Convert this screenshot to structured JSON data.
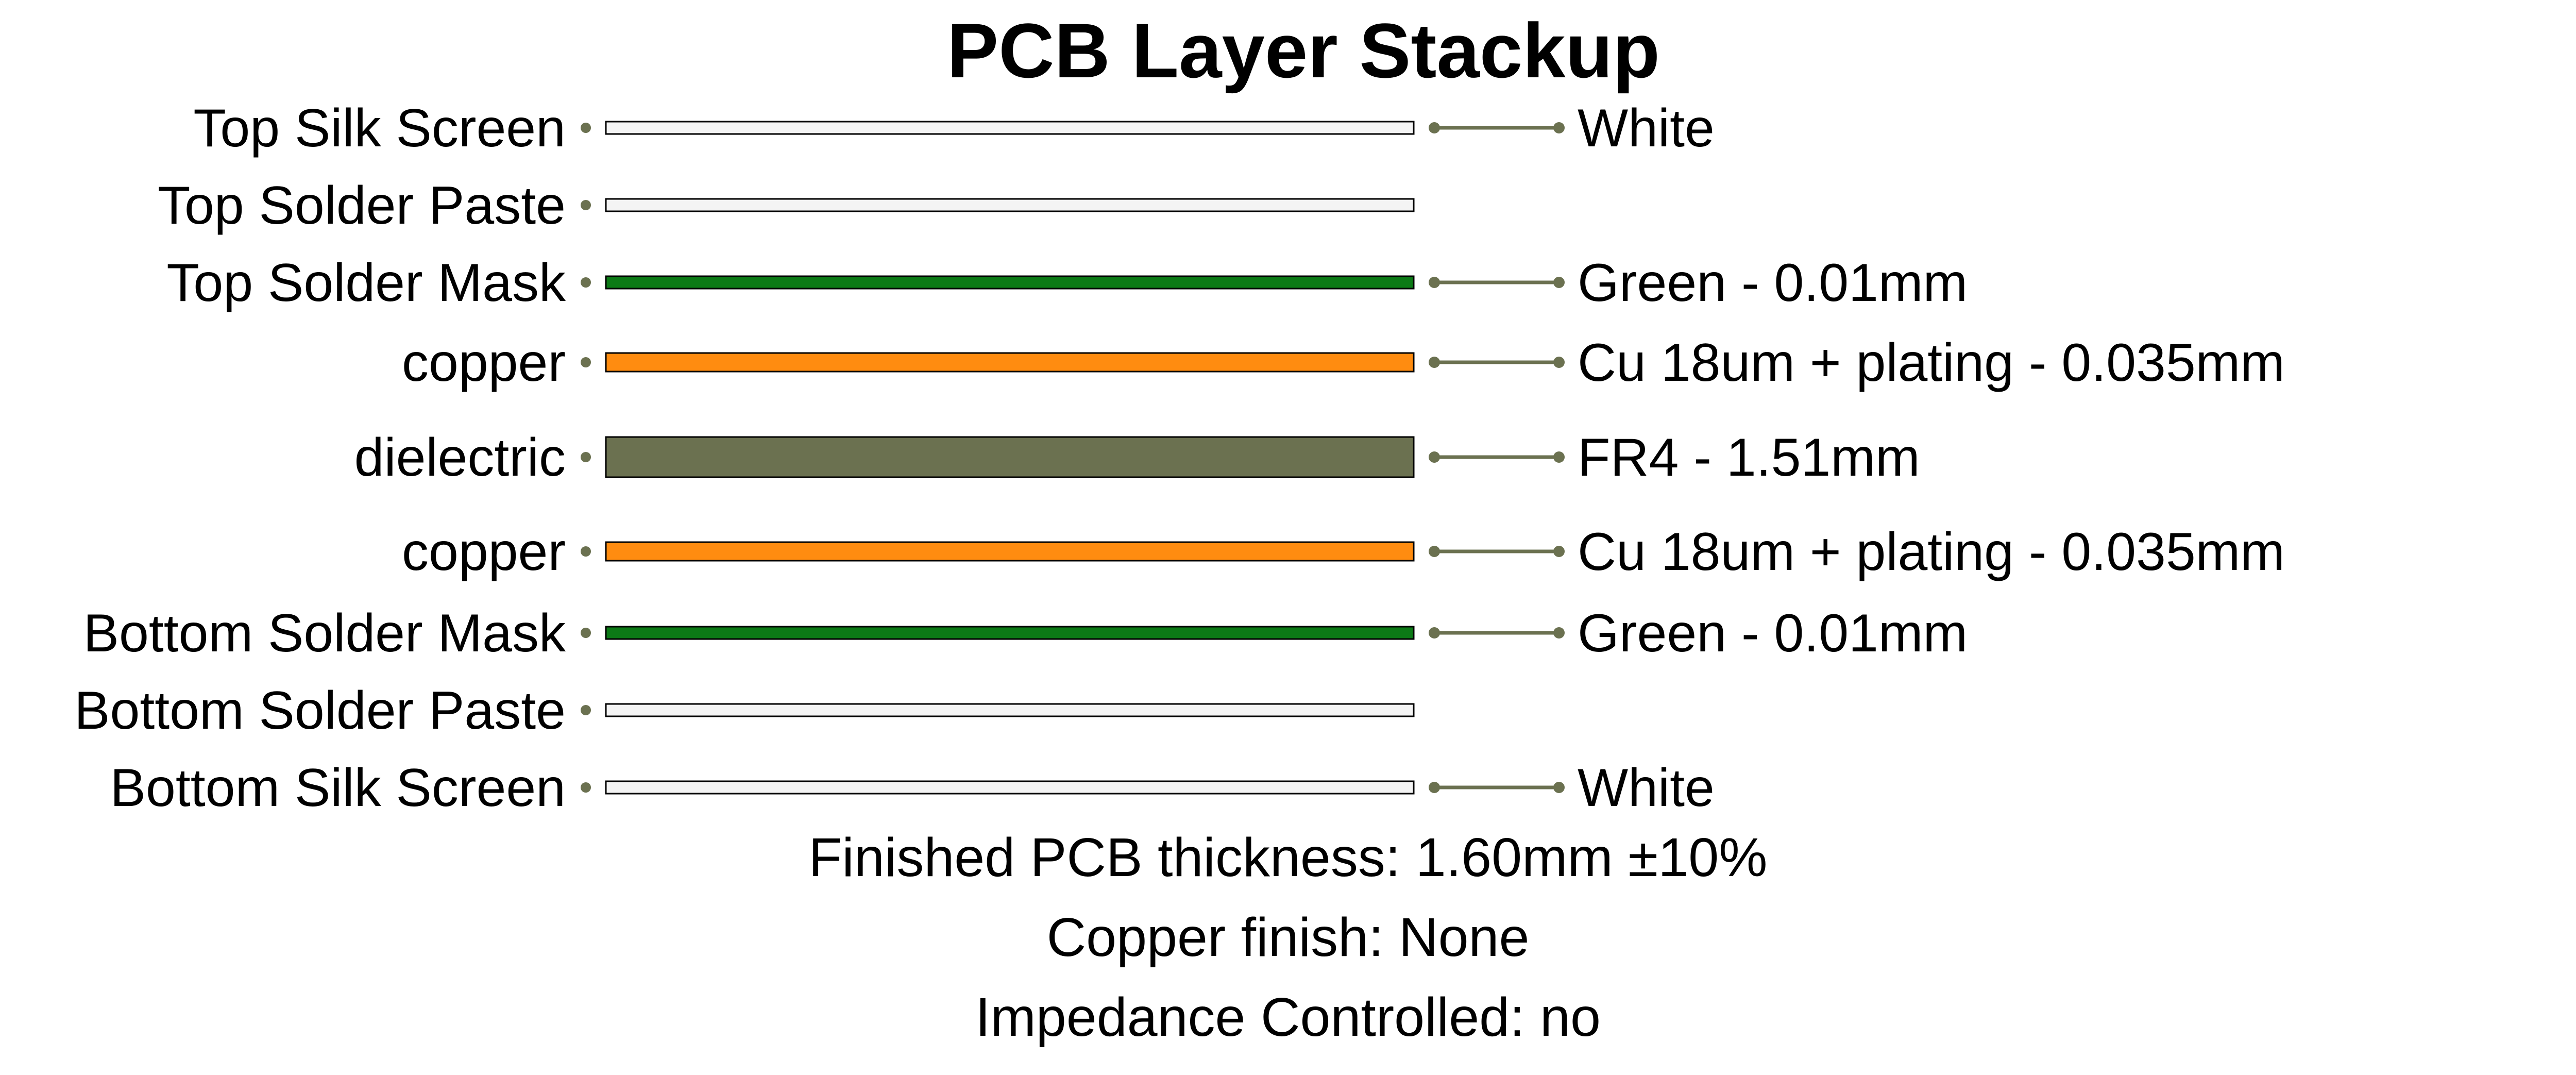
{
  "title": "PCB Layer Stackup",
  "colors": {
    "connector": "#6b7150",
    "outline": "#000000"
  },
  "layers": [
    {
      "name": "Top Silk Screen",
      "description": "White",
      "fill": "#f4f4f4"
    },
    {
      "name": "Top Solder Paste",
      "description": "",
      "fill": "#f4f4f4"
    },
    {
      "name": "Top Solder Mask",
      "description": "Green - 0.01mm",
      "fill": "#0c7a16"
    },
    {
      "name": "copper",
      "description": "Cu 18um + plating - 0.035mm",
      "fill": "#ff8c10"
    },
    {
      "name": "dielectric",
      "description": "FR4 - 1.51mm",
      "fill": "#6b7150"
    },
    {
      "name": "copper",
      "description": "Cu 18um + plating - 0.035mm",
      "fill": "#ff8c10"
    },
    {
      "name": "Bottom Solder Mask",
      "description": "Green - 0.01mm",
      "fill": "#0c7a16"
    },
    {
      "name": "Bottom Solder Paste",
      "description": "",
      "fill": "#f4f4f4"
    },
    {
      "name": "Bottom Silk Screen",
      "description": "White",
      "fill": "#f4f4f4"
    }
  ],
  "footer": {
    "thickness": "Finished PCB thickness: 1.60mm ±10%",
    "finish": "Copper finish: None",
    "impedance": "Impedance Controlled: no"
  }
}
